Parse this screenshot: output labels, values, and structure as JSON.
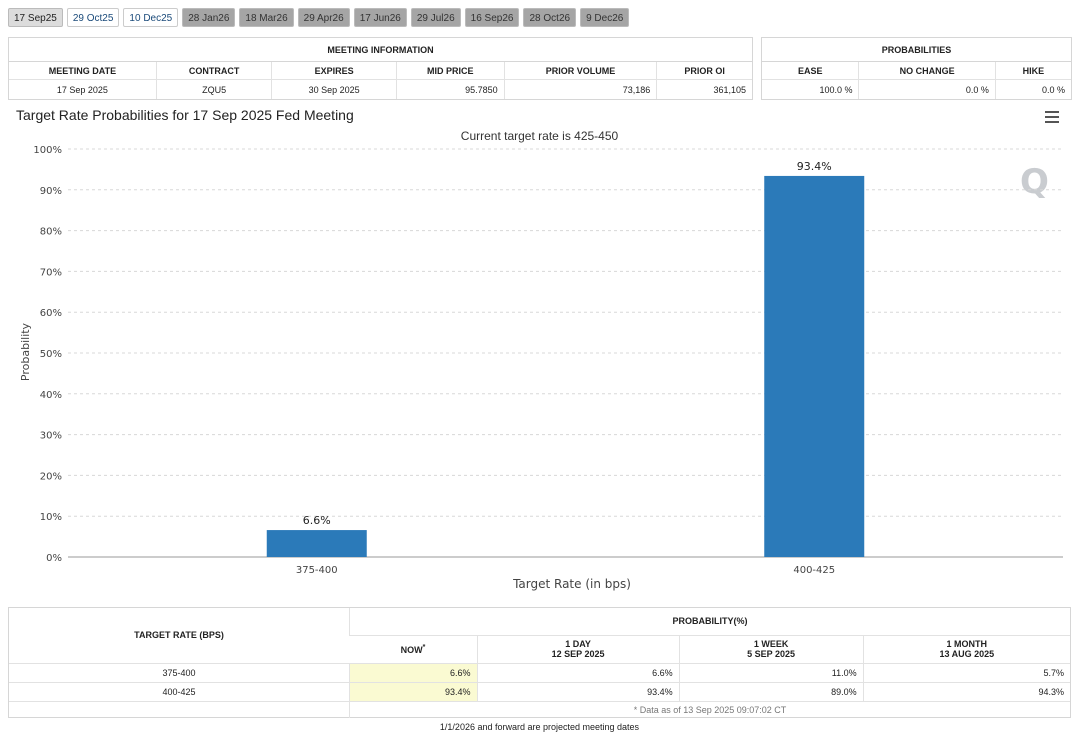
{
  "tabs": [
    "17 Sep25",
    "29 Oct25",
    "10 Dec25",
    "28 Jan26",
    "18 Mar26",
    "29 Apr26",
    "17 Jun26",
    "29 Jul26",
    "16 Sep26",
    "28 Oct26",
    "9 Dec26"
  ],
  "meeting_info": {
    "title": "MEETING INFORMATION",
    "headers": [
      "MEETING DATE",
      "CONTRACT",
      "EXPIRES",
      "MID PRICE",
      "PRIOR VOLUME",
      "PRIOR OI"
    ],
    "row": [
      "17 Sep 2025",
      "ZQU5",
      "30 Sep 2025",
      "95.7850",
      "73,186",
      "361,105"
    ]
  },
  "probabilities": {
    "title": "PROBABILITIES",
    "headers": [
      "EASE",
      "NO CHANGE",
      "HIKE"
    ],
    "row": [
      "100.0 %",
      "0.0 %",
      "0.0 %"
    ]
  },
  "chart": {
    "title": "Target Rate Probabilities for 17 Sep 2025 Fed Meeting",
    "subtitle": "Current target rate is 425-450"
  },
  "chart_data": {
    "type": "bar",
    "categories": [
      "375-400",
      "400-425"
    ],
    "values": [
      6.6,
      93.4
    ],
    "data_labels": [
      "6.6%",
      "93.4%"
    ],
    "xlabel": "Target Rate (in bps)",
    "ylabel": "Probability",
    "ylim": [
      0,
      100
    ],
    "yticks": [
      "0%",
      "10%",
      "20%",
      "30%",
      "40%",
      "50%",
      "60%",
      "70%",
      "80%",
      "90%",
      "100%"
    ],
    "bar_color": "#2b7ab9",
    "grid": true
  },
  "prob_table": {
    "col_target": "TARGET RATE (BPS)",
    "col_prob": "PROBABILITY(%)",
    "now_label": "NOW",
    "now_mark": "*",
    "cols": [
      {
        "line1": "1 DAY",
        "line2": "12 SEP 2025"
      },
      {
        "line1": "1 WEEK",
        "line2": "5 SEP 2025"
      },
      {
        "line1": "1 MONTH",
        "line2": "13 AUG 2025"
      }
    ],
    "rows": [
      {
        "rate": "375-400",
        "now": "6.6%",
        "d1": "6.6%",
        "w1": "11.0%",
        "m1": "5.7%"
      },
      {
        "rate": "400-425",
        "now": "93.4%",
        "d1": "93.4%",
        "w1": "89.0%",
        "m1": "94.3%"
      }
    ],
    "note": "* Data as of 13 Sep 2025 09:07:02 CT"
  },
  "footer": "1/1/2026 and forward are projected meeting dates"
}
